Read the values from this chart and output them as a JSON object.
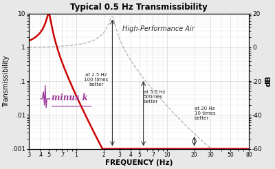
{
  "title": "Typical 0.5 Hz Transmissibility",
  "xlabel": "FREQUENCY (Hz)",
  "ylabel": "Transmissibility",
  "ylabel_right": "dB",
  "background_color": "#e8e8e8",
  "plot_bg_color": "#ffffff",
  "red_line_color": "#cc0000",
  "gray_line_color": "#aaaaaa",
  "logo_color": "#993399",
  "xlim": [
    0.3,
    80
  ],
  "ylim": [
    0.001,
    10
  ],
  "yticks_left": [
    0.001,
    0.01,
    0.1,
    1,
    10
  ],
  "ytick_labels_left": [
    ".001",
    ".01",
    ".1",
    "1",
    "10"
  ],
  "xticks": [
    0.3,
    0.4,
    0.5,
    0.7,
    1,
    2,
    3,
    4,
    5,
    7,
    10,
    20,
    30,
    50,
    80
  ],
  "xtick_labels": [
    ".3",
    ".4",
    ".5",
    ".7",
    "1",
    "2",
    "3",
    "4",
    "5",
    "7",
    "10",
    "20",
    "30",
    "50",
    "80"
  ],
  "yticks_right_vals": [
    -60,
    -40,
    -20,
    0,
    20
  ],
  "yticks_right_labels": [
    "-60",
    "-40",
    "-20",
    "0",
    "20"
  ],
  "label_hpa": "High-Performance Air",
  "ann1_text": "at 2.5 Hz\n100 times\nbetter",
  "ann2_text": "at 5.5 Hz\n50times\nbetter",
  "ann3_text": "at 20 Hz\n10 times\nbetter",
  "logo_text": "minus k"
}
